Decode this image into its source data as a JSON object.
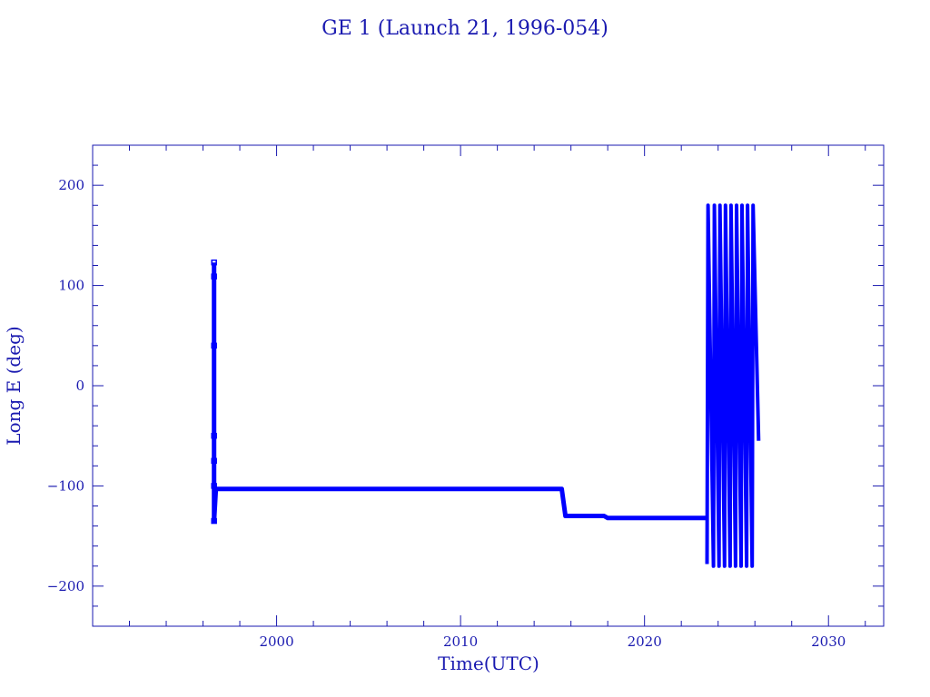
{
  "chart_data": {
    "type": "line",
    "title": "GE 1 (Launch 21, 1996-054)",
    "xlabel": "Time(UTC)",
    "ylabel": "Long E (deg)",
    "xlim": [
      1990.0,
      2033.0
    ],
    "ylim": [
      -240,
      240
    ],
    "x_ticks": [
      2000,
      2010,
      2020,
      2030
    ],
    "x_tick_labels": [
      "2000",
      "2010",
      "2020",
      "2030"
    ],
    "y_ticks": [
      -200,
      -100,
      0,
      100,
      200
    ],
    "y_tick_labels": [
      "−200",
      "−100",
      "0",
      "100",
      "200"
    ],
    "x_minor_step": 2,
    "y_minor_step": 20,
    "grid": false,
    "colors": {
      "axis": "#1a1ab0",
      "series": "#0000ff"
    },
    "series": [
      {
        "x": [
          1996.6,
          1996.6,
          1996.6,
          1996.6,
          1996.6,
          1996.6,
          1996.6,
          1996.7,
          2000.0,
          2005.0,
          2010.0,
          2015.5,
          2015.7,
          2016.5,
          2017.8,
          2018.0,
          2020.0,
          2023.4
        ],
        "y": [
          123,
          109,
          40,
          -50,
          -75,
          -100,
          -135,
          -103,
          -103,
          -103,
          -103,
          -103,
          -130,
          -130,
          -130,
          -132,
          -132,
          -132
        ]
      },
      {
        "x": [
          2023.4,
          2023.45,
          2023.75,
          2023.8,
          2024.05,
          2024.1,
          2024.35,
          2024.4,
          2024.65,
          2024.7,
          2024.95,
          2025.0,
          2025.25,
          2025.3,
          2025.55,
          2025.6,
          2025.85,
          2025.9,
          2026.2
        ],
        "y": [
          -178,
          180,
          -180,
          180,
          -180,
          180,
          -180,
          180,
          -180,
          180,
          -180,
          180,
          -180,
          180,
          -180,
          180,
          -180,
          180,
          -55
        ]
      }
    ],
    "markers": [
      {
        "x": 1996.6,
        "y": 123
      },
      {
        "x": 1996.6,
        "y": 109
      },
      {
        "x": 1996.6,
        "y": 40
      },
      {
        "x": 1996.6,
        "y": -50
      },
      {
        "x": 1996.6,
        "y": -75
      },
      {
        "x": 1996.6,
        "y": -100
      },
      {
        "x": 1996.6,
        "y": -135
      }
    ]
  }
}
